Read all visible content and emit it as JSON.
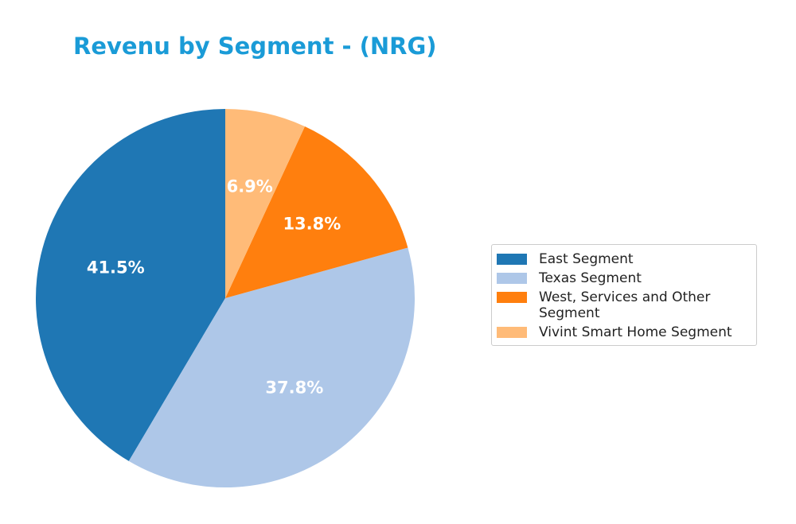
{
  "chart_data": {
    "type": "pie",
    "title": "Revenu by Segment - (NRG)",
    "categories": [
      "East Segment",
      "Texas Segment",
      "West, Services and Other Segment",
      "Vivint Smart Home Segment"
    ],
    "values": [
      41.5,
      37.8,
      13.8,
      6.9
    ],
    "value_labels": [
      "41.5%",
      "37.8%",
      "13.8%",
      "6.9%"
    ],
    "colors": [
      "#1f77b4",
      "#aec7e8",
      "#ff7f0e",
      "#ffbb78"
    ],
    "legend": "right"
  }
}
